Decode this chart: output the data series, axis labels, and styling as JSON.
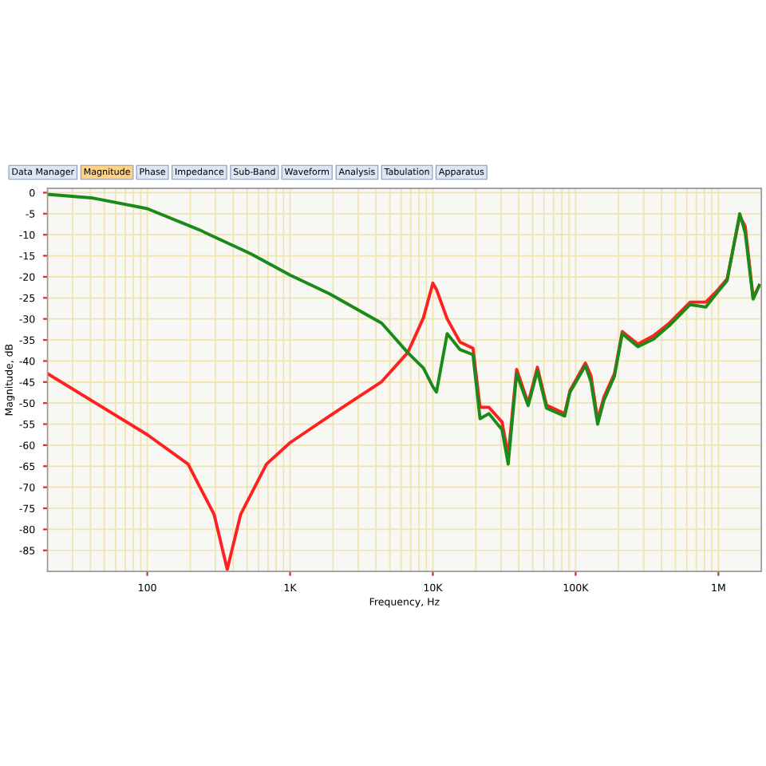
{
  "chart_data": {
    "type": "line",
    "xlabel": "Frequency, Hz",
    "ylabel": "Magnitude, dB",
    "annotations": [
      "Data Manager",
      "Magnitude",
      "Phase",
      "Impedance",
      "Sub-Band",
      "Waveform",
      "Analysis",
      "Tabulation",
      "Apparatus"
    ],
    "log": "x",
    "grid": true,
    "xlim": [
      20,
      2000000
    ],
    "ylim": [
      -90,
      1
    ],
    "xticks": [
      100,
      {
        "value": 1000,
        "label": "1K"
      },
      {
        "value": 10000,
        "label": "10K"
      },
      {
        "value": 100000,
        "label": "100K"
      },
      {
        "value": 1000000,
        "label": "1M"
      }
    ],
    "yticks": [
      0,
      -5,
      -10,
      -15,
      -20,
      -25,
      -30,
      -35,
      -40,
      -45,
      -50,
      -55,
      -60,
      -65,
      -70,
      -75,
      -80,
      -85
    ],
    "series": [
      {
        "color": "#ff2020",
        "x": [
          20,
          100,
          193,
          294,
          363,
          450,
          684,
          1000,
          1880,
          4380,
          6670,
          8600,
          10000,
          10600,
          12600,
          15500,
          19100,
          21400,
          24700,
          30500,
          33700,
          38600,
          46500,
          54000,
          62500,
          83800,
          91300,
          117000,
          128000,
          142600,
          158000,
          187000,
          212000,
          273000,
          351000,
          453000,
          634000,
          816000,
          967000,
          1150000,
          1410000,
          1540000,
          1750000,
          1930000
        ],
        "values": [
          -43,
          -57.5,
          -64.5,
          -76.5,
          -89.5,
          -76.5,
          -64.5,
          -59.4,
          -53.1,
          -44.9,
          -38,
          -29.7,
          -21.5,
          -23,
          -30,
          -35.5,
          -37,
          -51,
          -51,
          -54.5,
          -62.5,
          -42,
          -50,
          -41.5,
          -50.5,
          -52.5,
          -47,
          -40.5,
          -43.5,
          -54,
          -48.5,
          -43,
          -33,
          -36,
          -34,
          -31,
          -26,
          -26,
          -23.5,
          -20.5,
          -5.5,
          -8,
          -25,
          -22
        ]
      },
      {
        "color": "#1a8a1a",
        "x": [
          20,
          42,
          100,
          230,
          530,
          1000,
          1880,
          4380,
          6670,
          8600,
          10000,
          10600,
          12600,
          15500,
          19100,
          21400,
          24700,
          30500,
          33700,
          38600,
          46500,
          54000,
          62500,
          83800,
          91300,
          117000,
          128000,
          142600,
          158000,
          187000,
          212000,
          273000,
          351000,
          453000,
          634000,
          816000,
          967000,
          1150000,
          1410000,
          1540000,
          1750000,
          1930000
        ],
        "values": [
          -0.4,
          -1.3,
          -3.8,
          -8.8,
          -14.5,
          -19.6,
          -24,
          -31,
          -38,
          -41.7,
          -46.1,
          -47.4,
          -33.5,
          -37.3,
          -38.5,
          -53.7,
          -52.5,
          -56.3,
          -64.5,
          -43,
          -50.6,
          -42.3,
          -51.2,
          -53.1,
          -47.4,
          -41.1,
          -44.9,
          -55,
          -49.3,
          -43.6,
          -33.5,
          -36.6,
          -34.8,
          -31.6,
          -26.6,
          -27.2,
          -24,
          -20.9,
          -5,
          -9.5,
          -25.3,
          -22.1
        ]
      }
    ]
  }
}
